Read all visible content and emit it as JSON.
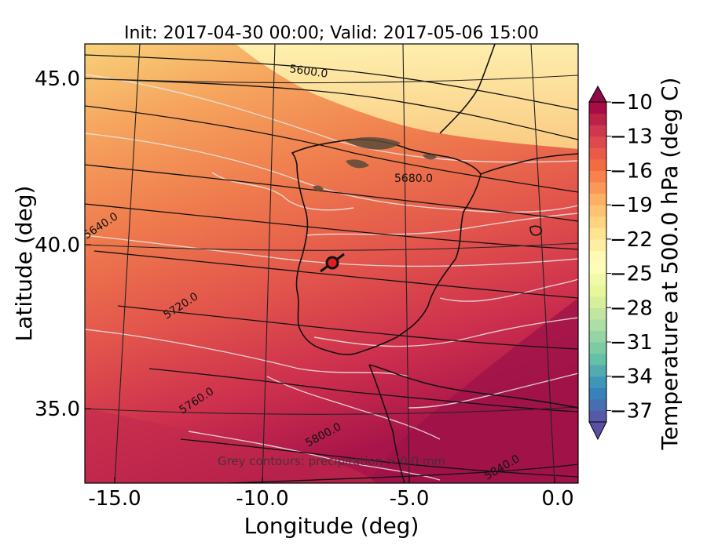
{
  "figure": {
    "title": "Init: 2017-04-30 00:00; Valid: 2017-05-06 15:00",
    "xlabel": "Longitude (deg)",
    "ylabel": "Latitude (deg)",
    "note": "Grey contours: precipitation > 0.0 mm"
  },
  "map": {
    "x_ticks": [
      {
        "value": -15.0,
        "label": "-15.0"
      },
      {
        "value": -10.0,
        "label": "-10.0"
      },
      {
        "value": -5.0,
        "label": "-5.0"
      },
      {
        "value": 0.0,
        "label": "0.0"
      }
    ],
    "y_ticks": [
      {
        "value": 45.0,
        "label": "45.0"
      },
      {
        "value": 40.0,
        "label": "40.0"
      },
      {
        "value": 35.0,
        "label": "35.0"
      }
    ],
    "height_contour_labels": [
      "5600.0",
      "5640.0",
      "5680.0",
      "5720.0",
      "5760.0",
      "5800.0",
      "5840.0"
    ],
    "marker": {
      "lon": -7.6,
      "lat": 39.3,
      "edge_color": "#111111",
      "face_color": "#e02020"
    }
  },
  "colorbar": {
    "label": "Temperature at 500.0 hPa (deg C)",
    "ticks": [
      "−10",
      "−13",
      "−16",
      "−19",
      "−22",
      "−25",
      "−28",
      "−31",
      "−34",
      "−37"
    ],
    "vmin": -38,
    "vmax": -10,
    "colormap": "Spectral_r"
  }
}
